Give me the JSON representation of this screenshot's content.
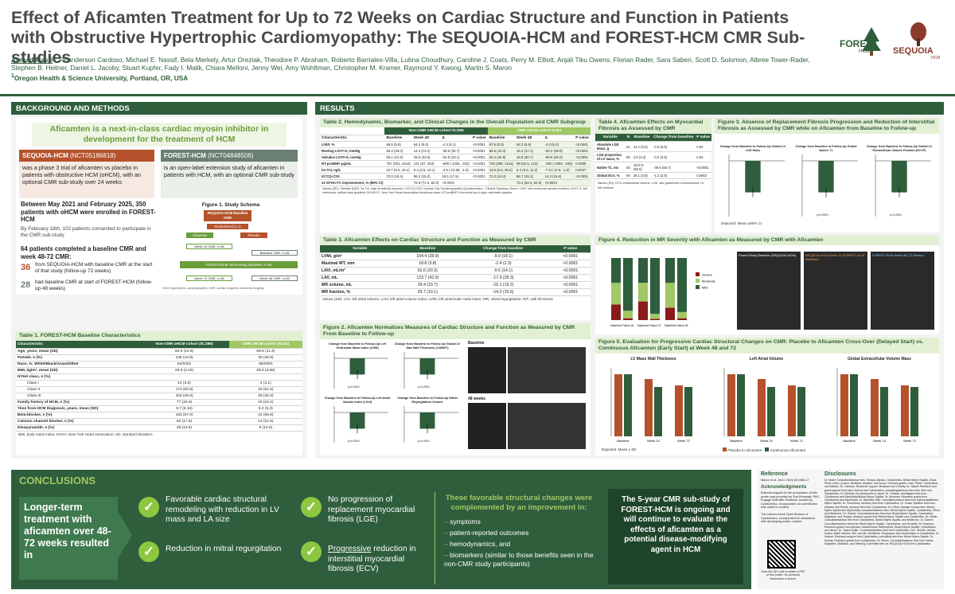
{
  "header": {
    "title": "Effect of Aficamten Treatment for Up to 72 Weeks on Cardiac Structure and Function in Patients with Obstructive Hypertrophic Cardiomyopathy: The SEQUOIA-HCM and FOREST-HCM CMR Sub-studies",
    "first_author": "Ahmad Masri",
    "authors_rest": ", Rhanderson Cardoso, Michael E. Nassif, Bela Merkely, Artur Oreziak, Theodore P. Abraham, Roberto Barriales-Villa, Lubna Choudhury, Caroline J. Coats, Perry M. Elliott, Anjali Tiku Owens, Florian Rader, Sara Saberi, Scott D. Solomon, Albree Tower-Rader, Stephen B. Heitner, Daniel L. Jacoby, Stuart Kupfer, Fady I. Malik, Chiara Melloni, Jenny Wei, Amy Wohltman, Christopher M. Kramer, Raymond Y. Kwong, Martin S. Maron",
    "affiliation": "Oregon Health & Science University, Portland, OR, USA",
    "logo_forest": "FOREST",
    "logo_forest_sub": "HCM",
    "logo_seq": "SEQUOIA",
    "logo_seq_sub": "HCM"
  },
  "background": {
    "header": "BACKGROUND AND METHODS",
    "intro": "Aficamten is a next-in-class cardiac myosin inhibitor in development for the treatment of HCM",
    "seq_tag": "SEQUOIA-HCM",
    "seq_id": "(NCT05186818)",
    "seq_text": "was a phase 3 trial of aficamten vs placebo in patients with obstructive HCM (oHCM), with an optional CMR sub-study over 24 weeks",
    "for_tag": "FOREST-HCM",
    "for_id": "(NCT04848506)",
    "for_text": "is an open-label extension study of aficamten in patients with HCM, with an optional CMR sub-study",
    "enroll": "Between May 2021 and February 2025, 350 patients with oHCM were enrolled in FOREST-HCM",
    "consent": "By February 18th, 102 patients consented to participate in the CMR sub-study",
    "completed": "64 patients completed a baseline CMR and week 48-72 CMR:",
    "n36": "36",
    "n36_text": "from SEQUOIA-HCM with baseline CMR at the start of that study (follow-up 72 weeks)",
    "n28": "28",
    "n28_text": "had baseline CMR at start of FOREST-HCM (follow-up 48 weeks)",
    "fig1_title": "Figure 1. Study Schema",
    "fig1_box": "SEQUOIA-HCM Baseline CMR",
    "fig1_rand": "Randomized (1:1)",
    "fig1_afi": "Aficamten",
    "fig1_pla": "Placebo",
    "fig1_w24": "Week 24 CMR, n=36",
    "fig1_bcmr": "Baseline CMR, n=28",
    "fig1_forest": "FOREST-HCM: all receiving aficamten, n=64",
    "fig1_w72": "Week 72 CMR, n=36",
    "fig1_w48": "Week 48 CMR, n=28",
    "fig1_note": "HCM, hypertrophic cardiomyopathy; CMR, cardiac magnetic resonance imaging"
  },
  "table1": {
    "title": "Table 1. FOREST-HCM Baseline Characteristics",
    "col0": "Characteristic",
    "col1": "Non-CMR oHCM cohort (N=286)",
    "col2": "CMR oHCM cohort (N=64)",
    "rows": [
      [
        "Age, years, mean (SD)",
        "60.9 (12.9)",
        "59.6 (11.3)"
      ],
      [
        "Female, n (%)",
        "128 (44.8)",
        "30 (46.9)"
      ],
      [
        "Race, %, White/Black/Asian/Other",
        "94/2/3/2",
        "95/0/5/0"
      ],
      [
        "BMI, kg/m², mean (SD)",
        "28.8 (4.19)",
        "29.0 (3.58)"
      ],
      [
        "NYHA class, n (%)",
        "",
        ""
      ],
      [
        "Class I",
        "10 (3.5)",
        "2 (3.1)"
      ],
      [
        "Class II",
        "173 (60.5)",
        "33 (51.6)"
      ],
      [
        "Class III",
        "103 (36.0)",
        "29 (45.3)"
      ],
      [
        "Family history of HCM, n (%)",
        "77 (26.9)",
        "15 (23.4)"
      ],
      [
        "Time from HCM Diagnosis, years, mean (SD)",
        "6.7 (6.34)",
        "6.2 (5.3)"
      ],
      [
        "Beta-blocker, n (%)",
        "163 (57.0)",
        "44 (68.8)"
      ],
      [
        "Calcium channel blocker, n (%)",
        "50 (17.5)",
        "14 (21.9)"
      ],
      [
        "Disopyramide, n (%)",
        "36 (12.6)",
        "8 (12.5)"
      ]
    ],
    "note": "BMI, body mass index; NYHA, New York Heart Association; SD, standard deviation"
  },
  "results": {
    "header": "RESULTS",
    "t2_title": "Table 2. Hemodynamic, Biomarker, and Clinical Changes in the Overall Population and CMR Subgroup",
    "t2_g1": "Non-CMR oHCM cohort N=286",
    "t2_g2": "CMR oHCM cohort N=64",
    "t2_cols": [
      "Characteristic",
      "Baseline",
      "Week 48",
      "Δ",
      "P value",
      "Baseline",
      "Week 48",
      "Δ",
      "P value"
    ],
    "t2_rows": [
      [
        "LVEF, %",
        "68.5 (5.8)",
        "64.2 (5.6)",
        "-4.3 (6.1)",
        "<0.0001",
        "67.6 (5.5)",
        "64.3 (5.6)",
        "-3.3 (6.4)",
        "<0.0001"
      ],
      [
        "Resting LVOT-G, mmHg",
        "53.3 (35.0)",
        "14.4 (13.2)",
        "-39.5 (35.7)",
        "<0.0001",
        "66.5 (42.3)",
        "16.4 (17.1)",
        "-50.2 (39.9)",
        "<0.0001"
      ],
      [
        "Valsalva LVOT-G, mmHg",
        "94.1 (41.9)",
        "29.6 (23.6)",
        "-63.9 (43.1)",
        "<0.0001",
        "94.4 (44.9)",
        "33.8 (30.7)",
        "-60.6 (46.0)",
        "<0.0001"
      ],
      [
        "NT-proBNP, pg/mL",
        "757 (301, 1544)",
        "131 (67, 343)",
        "-609 (-1326, -232)",
        "<0.0001",
        "740 (289, 1414)",
        "99 (52.5, 213)",
        "-492 (-1093, -230)",
        "0.0005"
      ],
      [
        "hs-TnI, ng/L",
        "10.7 (5.6, 19.1)",
        "6.4 (3.5, 10.1)",
        "-3.9 (-10.38, -1.0)",
        "<0.0001",
        "13.6 (5.5, 30.2)",
        "6.4 (3.6, 11.2)",
        "-7.3 (-17.6, -1.3)",
        "0.0027"
      ],
      [
        "KCCQ-CSS",
        "70.0 (19.4)",
        "86.2 (15.2)",
        "15.5 (17.5)",
        "<0.0001",
        "72.3 (19.3)",
        "86.7 (15.1)",
        "14.3 (15.6)",
        "<0.0001"
      ],
      [
        "≥1 NYHA FC improvement, % (95% CI)",
        "",
        "76.9 (71.0, 82.0)",
        "<0.0001",
        "",
        "",
        "73.4 (62.3, 84.6)",
        "<0.0001",
        ""
      ]
    ],
    "t2_note": "Values (SD) / Median (IQR). hs-TnI, high-sensitivity troponin I; KCCQ-CSS, Kansas City Cardiomyopathy Questionnaire – Clinical Summary Score; LVEF, left ventricular ejection fraction; LVOT-G, left ventricular outflow tract gradient; NYHA FC, New York Heart Association functional class; NT-proBNP, N-terminal pro-b-type natriuretic peptide",
    "t3_title": "Table 3. Aficamten Effects on Cardiac Structure and Function as Measured by CMR",
    "t3_cols": [
      "Variable",
      "Baseline",
      "Change from baseline",
      "P value"
    ],
    "t3_rows": [
      [
        "LVMi, g/m²",
        "104.4 (28.9)",
        "-9.9 (18.1)",
        "<0.0001"
      ],
      [
        "Maximal WT, mm",
        "18.8 (3.8)",
        "-2.4 (2.3)",
        "<0.0001"
      ],
      [
        "LAVi, mL/m²",
        "62.6 (20.3)",
        "-9.5 (14.1)",
        "<0.0001"
      ],
      [
        "LAV, mL",
        "123.7 (42.9)",
        "-17.9 (28.3)",
        "<0.0001"
      ],
      [
        "MR volume, mL",
        "29.4 (19.7)",
        "-10.1 (19.2)",
        "<0.0001"
      ],
      [
        "MR fraction, %",
        "29.7 (10.1)",
        "-14.2 (15.6)",
        "<0.0001"
      ]
    ],
    "t3_note": "Values (SD). LAV, left atrial volume; LAVi, left atrial volume index; LVMi, left ventricular mass index; MR, mitral regurgitation; WT, wall thickness",
    "f2_title": "Figure 2. Aficamten Normalizes Measures of Cardiac Structure and Function as Measured by CMR From Baseline to Follow-up",
    "f2_p1": "Change from Baseline to Follow-Up Left Ventricular Mass Index (LVMI)",
    "f2_p2": "Change from Baseline to Follow-Up Global LV Max Wall Thickness (LVMWT)",
    "f2_p3": "Change from Baseline to Follow-Up Left Atrial Volume Index (LAVI)",
    "f2_p4": "Change from Baseline to Follow-Up Mitral Regurgitation Volume",
    "f2_baseline": "Baseline",
    "f2_48w": "48 weeks",
    "f2_pval": "p<0.0001",
    "f2_note": "Depicted: Mean ± 95% CI",
    "t4_title": "Table 4. Aficamten Effects on Myocardial Fibrosis as Assessed by CMR",
    "t4_cols": [
      "Variable",
      "N",
      "Baseline",
      "Change from baseline",
      "P value"
    ],
    "t4_rows": [
      [
        "Absolute LGE Mass, g",
        "61",
        "14.1 (6.6)",
        "-0.3 (5.0)",
        "0.52"
      ],
      [
        "LGE proportion of LV mass, %",
        "60",
        "2.8 (3.3)",
        "-0.2 (3.8)",
        "0.64"
      ],
      [
        "Native T1, ms",
        "63",
        "1047.8 (55.5)",
        "-36.6 (55.7)",
        "<0.0001"
      ],
      [
        "Global ECV, %",
        "60",
        "29.1 (3.6)",
        "-1.2 (2.8)",
        "0.0002"
      ]
    ],
    "t4_note": "Values (SD). ECV, extracellular volume; LGE, late gadolinium enhancement; LV, left ventricle",
    "f3_title": "Figure 3. Absence of Replacement Fibrosis Progression and Reduction of Interstitial Fibrosis as Assessed by CMR while on Aficamten from Baseline to Follow-up",
    "f3_p1": "Change from Baseline to Follow-Up Global LV LGE Mass",
    "f3_p2": "Change from Baseline to Follow-Up Global Native T1",
    "f3_p3": "Change from Baseline to Follow-Up Global LV Extracellular Volume Fraction (ECVF)",
    "f3_note": "Depicted: Mean ±95% CI",
    "f4_title": "Figure 4. Reduction in MR Severity with Aficamten as Measured by CMR with Aficamten",
    "f4_x": [
      "Baseline",
      "Follow 24",
      "Baseline",
      "Follow 72",
      "Baseline",
      "Follow 48"
    ],
    "f4_legend": [
      "Severe",
      "Moderate",
      "Mild"
    ],
    "f4_img1": "Parent Study Baseline (SEQUOIA-HCM)",
    "f4_img2": "SEQUOIA-HCM Week 24 (FOREST-HCM Baseline)",
    "f4_img3": "FOREST-HCM Week 48 (72 Weeks)",
    "f5_title": "Figure 5. Evaluation for Progressive Cardiac Structural Changes on CMR: Placebo to Aficamten Cross-Over (Delayed Start) vs. Continuous Aficamten (Early Start) at Week 48 and 72",
    "f5_p1": "LV Mass Wall Thickness",
    "f5_p2": "Left Atrial Volume",
    "f5_p3": "Global Extracellular Volume Mass",
    "f5_x": [
      "Baseline",
      "Week 24",
      "Week 72"
    ],
    "f5_leg1": "Placebo to Aficamten",
    "f5_leg2": "Continuous Aficamten",
    "f5_note": "Depicted: Mean ± SD"
  },
  "conclusions": {
    "header": "CONCLUSIONS",
    "lead": "Longer-term treatment with aficamten over 48-72 weeks resulted in",
    "c1": "Favorable cardiac structural remodeling with reduction in LV mass and LA size",
    "c2": "Reduction in mitral regurgitation",
    "c3": "No progression of replacement myocardial fibrosis (LGE)",
    "c4_pre": "Progressive",
    "c4_post": " reduction in interstitial myocardial fibrosis (ECV)",
    "complemented": "These favorable structural changes were complemented by an improvement in:",
    "bullets": [
      "symptoms",
      "patient-reported outcomes",
      "hemodynamics, and",
      "biomarkers (similar to those benefits seen in the non-CMR study participants)"
    ],
    "final": "The 5-year CMR sub-study of FOREST-HCM is ongoing and will continue to evaluate the effects of aficamten as a potential disease-modifying agent in HCM"
  },
  "reference": {
    "title": "Reference",
    "ref1": "Maron et al. JACC 2024;84:1086-17",
    "ack_title": "Acknowledgments",
    "ack": "Editorial support for the preparation of this poster was provided by Sue Reinwald, PhD, Engage Scientific Solutions, funded by Cytokinetics. Incorporated; no contribution was made to content.",
    "ack2": "The authors thank Tyrell Simkins of Cytokinetics, Incorporated for assistance with developing poster content.",
    "qr_text": "Scan the QR code to obtain a PDF of this poster. No personal information is stored.",
    "disc_title": "Disclosures",
    "disc": "Dr. Masri: Consultant/advisor fees: Tenaya, Attralus, Cytokinetics, Bristol Myers Squibb, Eidos, Pfizer, Ionis, Lexicon, BioMarin, Alnylam, and Iconic; research grants: Ionis, Pfizer, Cytokinetics, and Attralus. Dr. Cardoso: Research support: Medpace and Clearity. Dr. Nassif: Research and grant support from Astra Zeneca and Cytokinetics, consulting/advisory fees from Vifor and Cytokinetics. Dr. Merkely: No disclosures to report. Dr. Oreziak: Investigator fees from Cytokinetics and MyoKardia/Bristol Myers Squibb. Dr. Abraham: Research grants from Cytokinetics and MyoKardia. Dr. Barriales-Villa: Consultant/advisor fees from MyoKardia/Bristol Myers Squibb. Dr. Choudhury: Advisory fees from Cytokinetics. Dr. Coats: Speaker fees from Alnylam and Roche; advisory fees from Cytokinetics. Dr. Elliott: Speaker bureau fees: Bristol Myers Squibb and MyoKardia; consultant/advisor fees: Bristol Myers Squibb, Cytokinetics, Pfizer, and Medtronic. Dr. Owens: Consultant/advisor fees from Bristol Myers Squibb, Cytokinetics, Edgewise, and Tenaya; research grants from Bristol Myers Squibb and Cytokinetics. Dr. Rader: Consultant/advisor fees from Cytokinetics, Bristol Myers Squibb, and Medtronic. Dr. Saberi: Consultant/advisor fees from Bristol Myers Squibb, Cytokinetics, and Novartis. Dr. Solomon: Research grants from Alnylam, AstraZeneca, Bellerophon, Bristol Myers Squibb, Cytokinetics, and others. Dr. Tower-Rader: Consultant/advisor fees from Cytokinetics. Drs. Heitner, Jacoby, Kupfer, Malik, Melloni, Wei, and Ms. Wohltman: Employees and stockholders of Cytokinetics. Dr. Kramer: Research support from Cytokinetics; consulting fees from Bristol Myers Squibb. Dr. Kwong: Research grants from Cytokinetics. Dr. Maron: Consultant/advisor fees from Imbria, Edgewise, BioMarin, and Steering Committee fees for SEQUOIA-HCM from Cytokinetics."
  }
}
